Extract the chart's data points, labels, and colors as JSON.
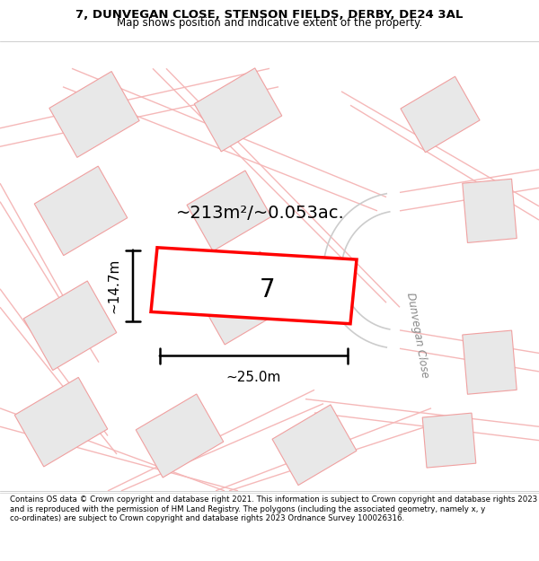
{
  "title_line1": "7, DUNVEGAN CLOSE, STENSON FIELDS, DERBY, DE24 3AL",
  "title_line2": "Map shows position and indicative extent of the property.",
  "footer_text": "Contains OS data © Crown copyright and database right 2021. This information is subject to Crown copyright and database rights 2023 and is reproduced with the permission of HM Land Registry. The polygons (including the associated geometry, namely x, y co-ordinates) are subject to Crown copyright and database rights 2023 Ordnance Survey 100026316.",
  "area_label": "~213m²/~0.053ac.",
  "width_label": "~25.0m",
  "height_label": "~14.7m",
  "plot_number": "7",
  "map_bg": "#ffffff",
  "plot_fill": "#ffffff",
  "plot_outline_color": "#ff0000",
  "building_fill": "#e8e8e8",
  "building_outline": "#f0a0a0",
  "road_line_color": "#f5b8b8",
  "street_label": "Dunvegan Close",
  "dim_color": "#000000",
  "title_fontsize": 9.5,
  "subtitle_fontsize": 8.5,
  "footer_fontsize": 6.2,
  "area_fontsize": 14,
  "dim_fontsize": 11,
  "plot_num_fontsize": 20,
  "street_fontsize": 8.5
}
